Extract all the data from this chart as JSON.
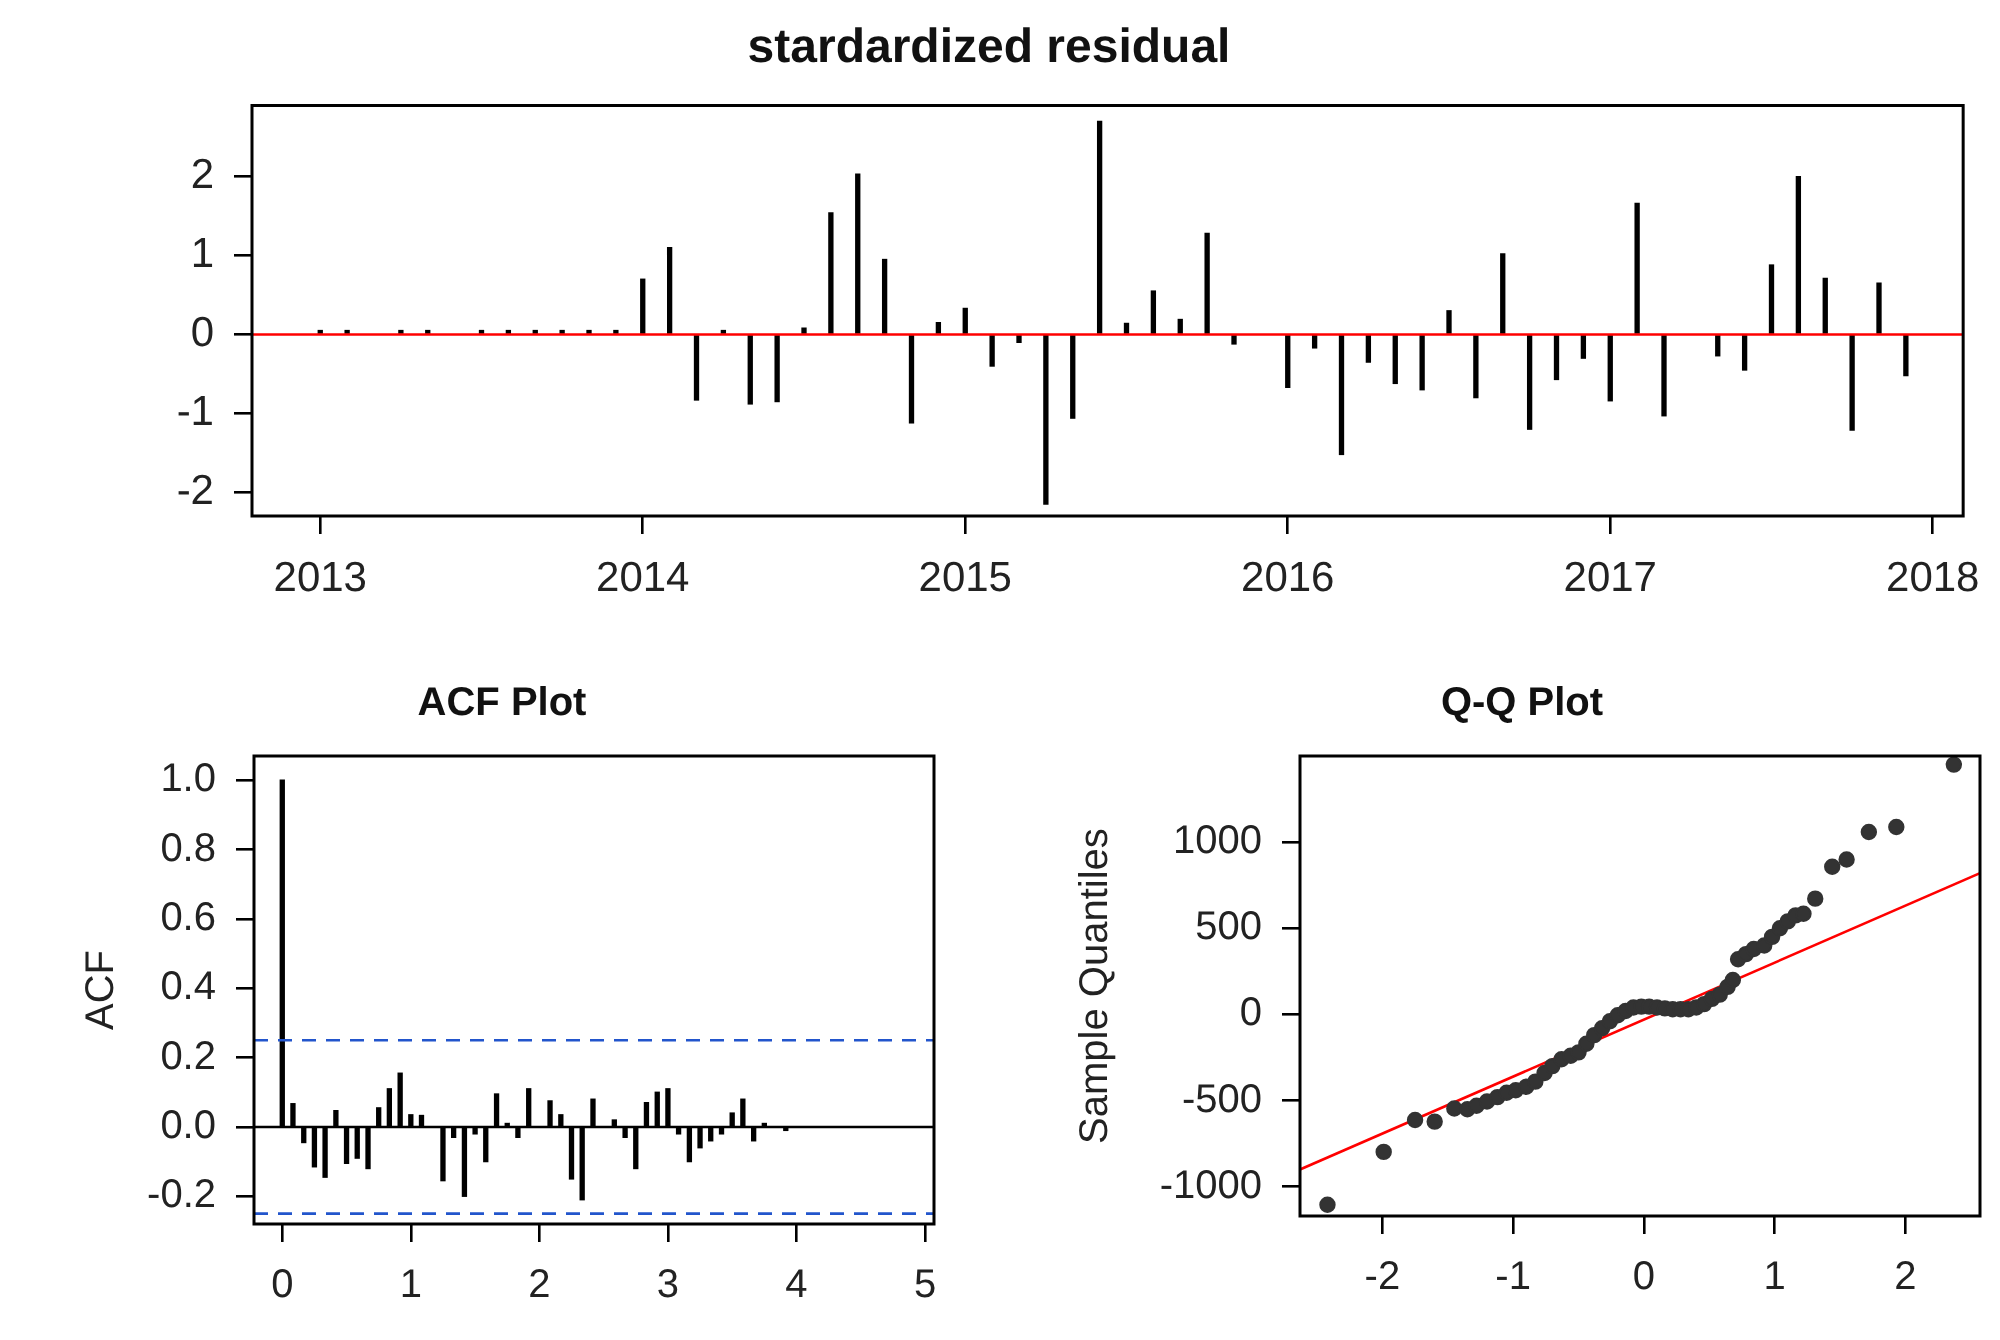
{
  "chart_data": [
    {
      "type": "bar",
      "title": "stardardized residual",
      "color": "#000000",
      "x": [
        "2013-01",
        "2013-02",
        "2013-04",
        "2013-05",
        "2013-07",
        "2013-08",
        "2013-09",
        "2013-10",
        "2013-11",
        "2013-12",
        "2014-01",
        "2014-02",
        "2014-03",
        "2014-04",
        "2014-05",
        "2014-06",
        "2014-07",
        "2014-08",
        "2014-09",
        "2014-10",
        "2014-11",
        "2014-12",
        "2015-01",
        "2015-02",
        "2015-03",
        "2015-04",
        "2015-05",
        "2015-06",
        "2015-07",
        "2015-08",
        "2015-09",
        "2015-10",
        "2015-11",
        "2016-01",
        "2016-02",
        "2016-03",
        "2016-04",
        "2016-05",
        "2016-06",
        "2016-07",
        "2016-08",
        "2016-09",
        "2016-10",
        "2016-11",
        "2016-12",
        "2017-01",
        "2017-02",
        "2017-03",
        "2017-05",
        "2017-06",
        "2017-07",
        "2017-08",
        "2017-09",
        "2017-10",
        "2017-11",
        "2017-12"
      ],
      "values": [
        0.05,
        0.05,
        0.05,
        0.05,
        0.05,
        0.05,
        0.05,
        0.05,
        0.05,
        0.05,
        0.7,
        1.1,
        -0.83,
        0.05,
        -0.88,
        -0.85,
        0.08,
        1.54,
        2.03,
        0.95,
        -1.12,
        0.15,
        0.33,
        -0.4,
        -0.1,
        -2.15,
        -1.06,
        2.7,
        0.14,
        0.55,
        0.19,
        1.28,
        -0.12,
        -0.67,
        -0.17,
        -1.52,
        -0.35,
        -0.62,
        -0.7,
        0.3,
        -0.8,
        1.02,
        -1.2,
        -0.57,
        -0.3,
        -0.84,
        1.66,
        -1.03,
        -0.27,
        -0.45,
        0.88,
        2.0,
        0.71,
        -1.21,
        0.65,
        -0.52
      ],
      "xlim": [
        "2012-10-15",
        "2018-02-05"
      ],
      "xticks": [
        "2013",
        "2014",
        "2015",
        "2016",
        "2017",
        "2018"
      ],
      "ylim": [
        -2.3,
        2.9
      ],
      "yticks": [
        -2,
        -1,
        0,
        1,
        2
      ],
      "ref_lines": [
        {
          "axis": "y",
          "value": 0,
          "color": "#ff0000"
        }
      ]
    },
    {
      "type": "bar",
      "title": "ACF Plot",
      "ylabel": "ACF",
      "color": "#000000",
      "x": [
        0,
        0.083,
        0.167,
        0.25,
        0.333,
        0.417,
        0.5,
        0.583,
        0.667,
        0.75,
        0.833,
        0.917,
        1,
        1.083,
        1.167,
        1.25,
        1.333,
        1.417,
        1.5,
        1.583,
        1.667,
        1.75,
        1.833,
        1.917,
        2,
        2.083,
        2.167,
        2.25,
        2.333,
        2.417,
        2.5,
        2.583,
        2.667,
        2.75,
        2.833,
        2.917,
        3,
        3.083,
        3.167,
        3.25,
        3.333,
        3.417,
        3.5,
        3.583,
        3.667,
        3.75,
        3.833,
        3.917
      ],
      "values": [
        1.0,
        0.067,
        -0.045,
        -0.115,
        -0.145,
        0.047,
        -0.105,
        -0.09,
        -0.12,
        0.055,
        0.11,
        0.155,
        0.035,
        0.033,
        0,
        -0.155,
        -0.03,
        -0.2,
        -0.02,
        -0.1,
        0.095,
        0.01,
        -0.03,
        0.11,
        0,
        0.075,
        0.035,
        -0.15,
        -0.21,
        0.08,
        0,
        0.02,
        -0.03,
        -0.12,
        0.07,
        0.1,
        0.11,
        -0.02,
        -0.1,
        -0.06,
        -0.04,
        -0.02,
        0.04,
        0.08,
        -0.04,
        0.01,
        0,
        -0.01
      ],
      "xlim": [
        -0.22,
        5.07
      ],
      "xticks": [
        0,
        1,
        2,
        3,
        4,
        5
      ],
      "ylim": [
        -0.28,
        1.07
      ],
      "yticks": [
        {
          "value": -0.2,
          "label": "-0.2"
        },
        {
          "value": 0,
          "label": "0.0"
        },
        {
          "value": 0.2,
          "label": "0.2"
        },
        {
          "value": 0.4,
          "label": "0.4"
        },
        {
          "value": 0.6,
          "label": "0.6"
        },
        {
          "value": 0.8,
          "label": "0.8"
        },
        {
          "value": 1,
          "label": "1.0"
        }
      ],
      "ref_lines": [
        {
          "axis": "y",
          "value": 0,
          "color": "#000000"
        },
        {
          "axis": "y",
          "value": 0.25,
          "color": "#2255cc",
          "line_style": "dashed"
        },
        {
          "axis": "y",
          "value": -0.25,
          "color": "#2255cc",
          "line_style": "dashed"
        }
      ]
    },
    {
      "type": "scatter",
      "title": "Q-Q Plot",
      "ylabel": "Sample Quantiles",
      "marker": "circle",
      "series": [
        {
          "type": "scatter",
          "color": "#333333",
          "x": [
            -2.42,
            -1.99,
            -1.75,
            -1.6,
            -1.45,
            -1.35,
            -1.28,
            -1.2,
            -1.12,
            -1.05,
            -0.98,
            -0.9,
            -0.83,
            -0.76,
            -0.7,
            -0.63,
            -0.56,
            -0.5,
            -0.44,
            -0.38,
            -0.32,
            -0.26,
            -0.2,
            -0.14,
            -0.08,
            -0.02,
            0.04,
            0.1,
            0.16,
            0.22,
            0.28,
            0.34,
            0.4,
            0.46,
            0.52,
            0.58,
            0.64,
            0.68,
            0.72,
            0.78,
            0.84,
            0.92,
            0.98,
            1.04,
            1.1,
            1.16,
            1.22,
            1.31,
            1.44,
            1.55,
            1.72,
            1.93,
            2.37
          ],
          "values": [
            -1105,
            -798,
            -613,
            -622,
            -546,
            -550,
            -530,
            -505,
            -480,
            -455,
            -440,
            -420,
            -390,
            -340,
            -300,
            -260,
            -240,
            -220,
            -170,
            -120,
            -80,
            -40,
            -5,
            20,
            40,
            45,
            45,
            40,
            35,
            30,
            30,
            30,
            40,
            60,
            90,
            115,
            160,
            200,
            320,
            350,
            380,
            400,
            450,
            500,
            540,
            575,
            584,
            672,
            857,
            899,
            1059,
            1088,
            1450
          ]
        },
        {
          "type": "line",
          "color": "#ff0000",
          "marker": "none",
          "x": [
            -2.63,
            2.57
          ],
          "values": [
            -900,
            820
          ]
        }
      ],
      "xlim": [
        -2.63,
        2.57
      ],
      "xticks": [
        -2,
        -1,
        0,
        1,
        2
      ],
      "ylim": [
        -1170,
        1500
      ],
      "yticks": [
        -1000,
        -500,
        0,
        500,
        1000
      ]
    }
  ]
}
